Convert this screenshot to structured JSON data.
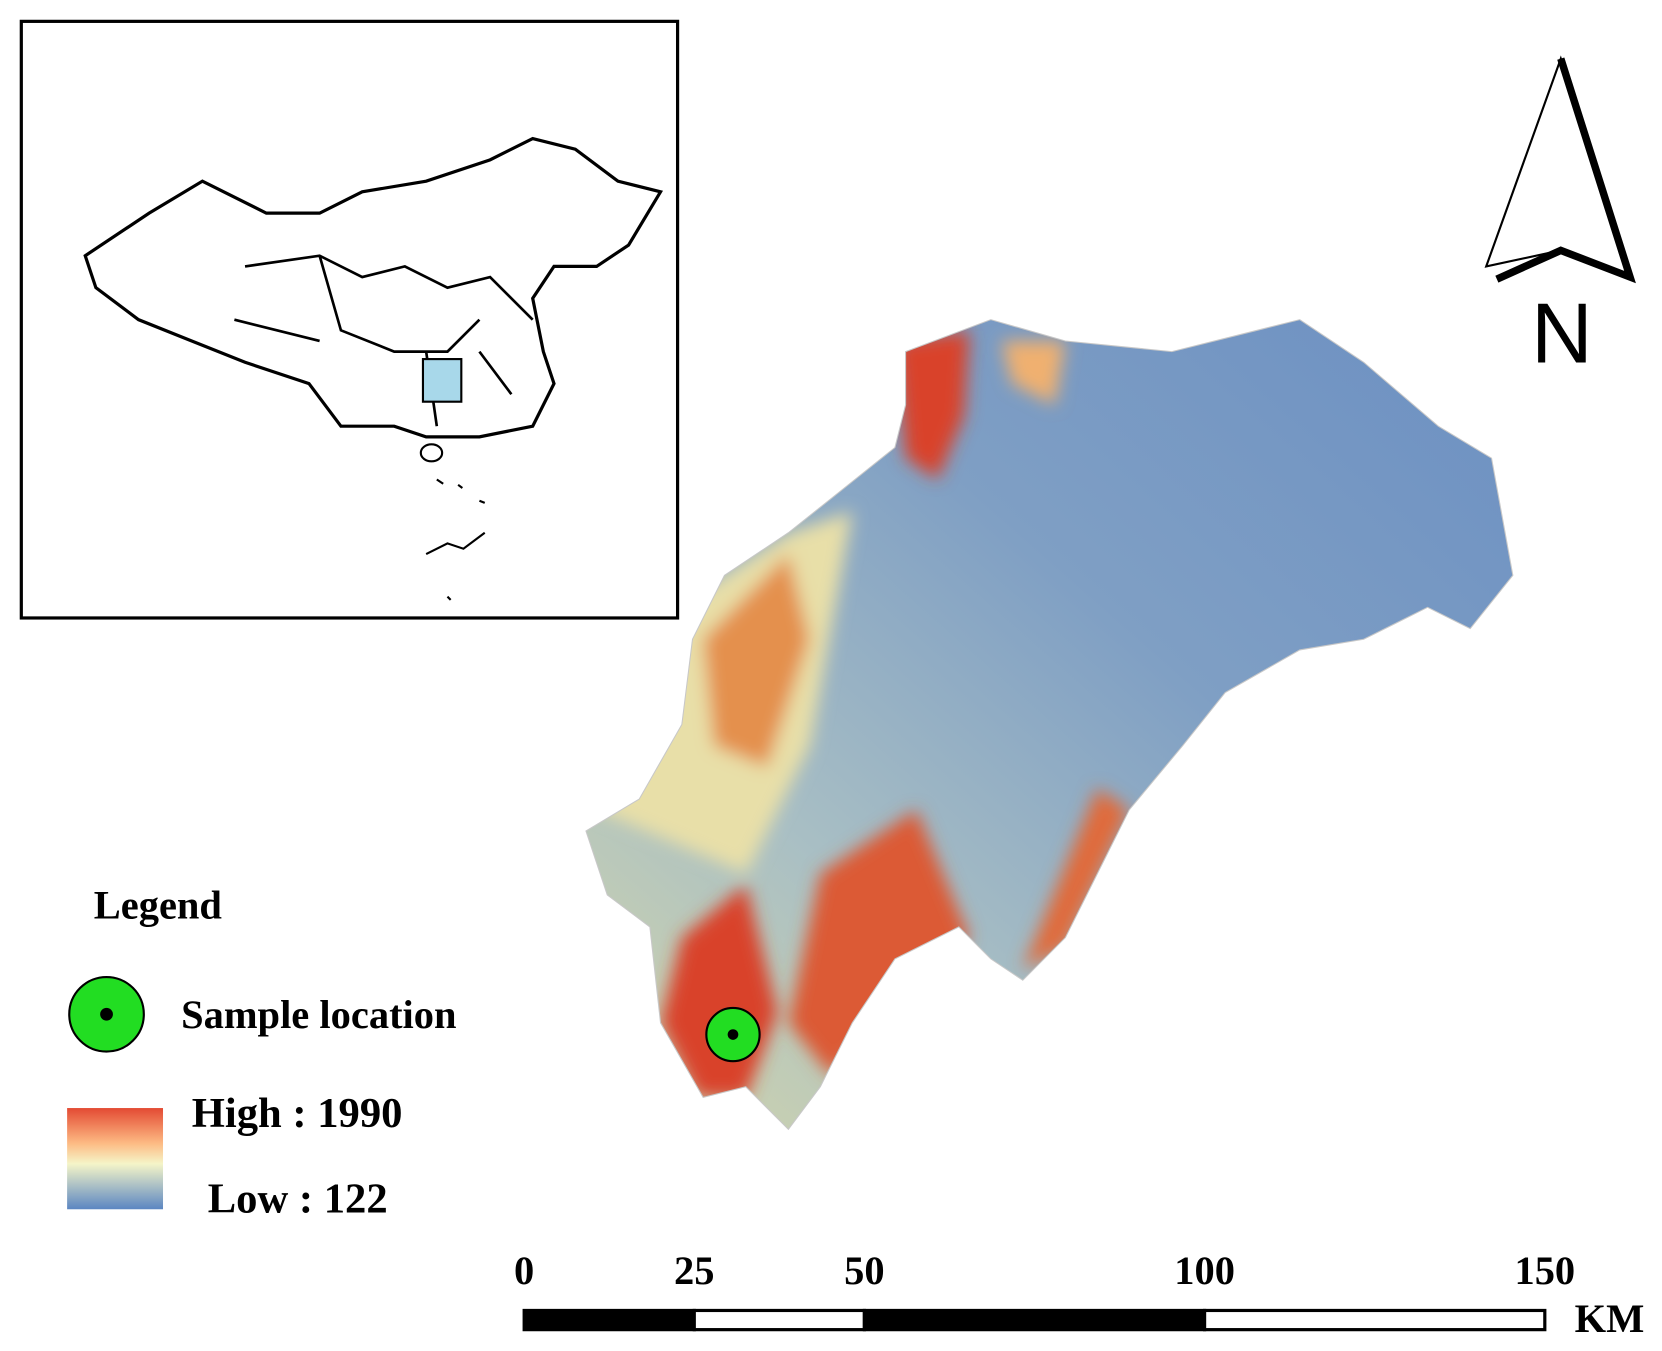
{
  "legend": {
    "title": "Legend",
    "sample": "Sample location",
    "high": "High : 1990",
    "low": "Low : 122"
  },
  "north": "N",
  "scale": {
    "ticks": [
      0,
      25,
      50,
      100,
      150
    ],
    "unit": "KM"
  }
}
